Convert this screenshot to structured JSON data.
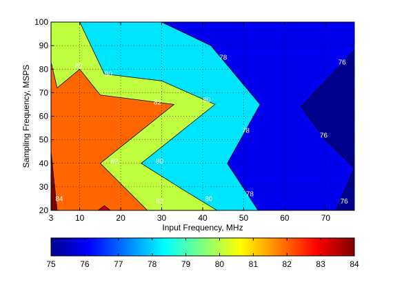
{
  "chart_data": {
    "type": "filled-contour",
    "title": "",
    "xlabel": "Input Frequency, MHz",
    "ylabel": "Sampling Frequency, MSPS",
    "xlim": [
      3,
      77
    ],
    "ylim": [
      20,
      100
    ],
    "x_ticks": [
      "3",
      "10",
      "20",
      "30",
      "40",
      "50",
      "60",
      "70"
    ],
    "x_tick_values": [
      3,
      10,
      20,
      30,
      40,
      50,
      60,
      70
    ],
    "y_ticks": [
      "20",
      "30",
      "40",
      "50",
      "60",
      "70",
      "80",
      "90",
      "100"
    ],
    "y_tick_values": [
      20,
      30,
      40,
      50,
      60,
      70,
      80,
      90,
      100
    ],
    "grid": true,
    "colorbar": {
      "orientation": "horizontal",
      "min": 75,
      "max": 84,
      "ticks": [
        "75",
        "76",
        "77",
        "78",
        "79",
        "80",
        "81",
        "82",
        "83",
        "84"
      ],
      "tick_values": [
        75,
        76,
        77,
        78,
        79,
        80,
        81,
        82,
        83,
        84
      ]
    },
    "regions": [
      {
        "level": 76,
        "color": "#00008f",
        "polygon": [
          [
            3,
            20
          ],
          [
            77,
            20
          ],
          [
            77,
            100
          ],
          [
            3,
            100
          ]
        ]
      },
      {
        "level": 77,
        "color": "#0000ef",
        "polygon": [
          [
            3,
            20
          ],
          [
            72.5,
            20
          ],
          [
            77,
            38
          ],
          [
            70,
            50
          ],
          [
            64,
            64
          ],
          [
            77,
            88
          ],
          [
            77,
            100
          ],
          [
            3,
            100
          ]
        ]
      },
      {
        "level": 79,
        "color": "#00e5ff",
        "polygon": [
          [
            3,
            20
          ],
          [
            53.5,
            20
          ],
          [
            46,
            40
          ],
          [
            54,
            65
          ],
          [
            42,
            90
          ],
          [
            30,
            100
          ],
          [
            3,
            100
          ]
        ]
      },
      {
        "level": 80,
        "color": "#bfff3f",
        "polygon": [
          [
            3,
            20
          ],
          [
            43.5,
            20
          ],
          [
            35,
            29
          ],
          [
            25,
            40
          ],
          [
            43,
            65
          ],
          [
            30,
            75
          ],
          [
            16,
            78
          ],
          [
            10,
            100
          ],
          [
            3,
            100
          ]
        ]
      },
      {
        "level": 82,
        "color": "#ff6600",
        "polygon": [
          [
            3,
            20
          ],
          [
            26.5,
            20
          ],
          [
            15,
            40
          ],
          [
            33,
            65
          ],
          [
            15,
            69
          ],
          [
            10,
            80
          ],
          [
            4.5,
            72
          ],
          [
            3,
            83
          ]
        ]
      },
      {
        "level": 84,
        "color": "#7f0000",
        "polygon": [
          [
            3,
            20
          ],
          [
            4.5,
            20
          ],
          [
            3,
            45
          ]
        ]
      },
      {
        "level": 83,
        "color": "#c00000",
        "polygon": [
          [
            14.5,
            20
          ],
          [
            17.5,
            20
          ],
          [
            16,
            22
          ]
        ]
      }
    ],
    "contour_labels": [
      {
        "text": "78",
        "x": 45,
        "y": 85
      },
      {
        "text": "76",
        "x": 74,
        "y": 83
      },
      {
        "text": "82",
        "x": 9.8,
        "y": 81.5
      },
      {
        "text": "80",
        "x": 17,
        "y": 78
      },
      {
        "text": "82",
        "x": 29,
        "y": 66
      },
      {
        "text": "80",
        "x": 41,
        "y": 67
      },
      {
        "text": "78",
        "x": 50.5,
        "y": 54
      },
      {
        "text": "76",
        "x": 69.5,
        "y": 52
      },
      {
        "text": "82",
        "x": 18.5,
        "y": 41
      },
      {
        "text": "80",
        "x": 29.5,
        "y": 41
      },
      {
        "text": "84",
        "x": 5,
        "y": 25
      },
      {
        "text": "82",
        "x": 29.5,
        "y": 24
      },
      {
        "text": "80",
        "x": 41.5,
        "y": 25
      },
      {
        "text": "78",
        "x": 51.5,
        "y": 27
      },
      {
        "text": "76",
        "x": 74.5,
        "y": 24
      }
    ]
  }
}
